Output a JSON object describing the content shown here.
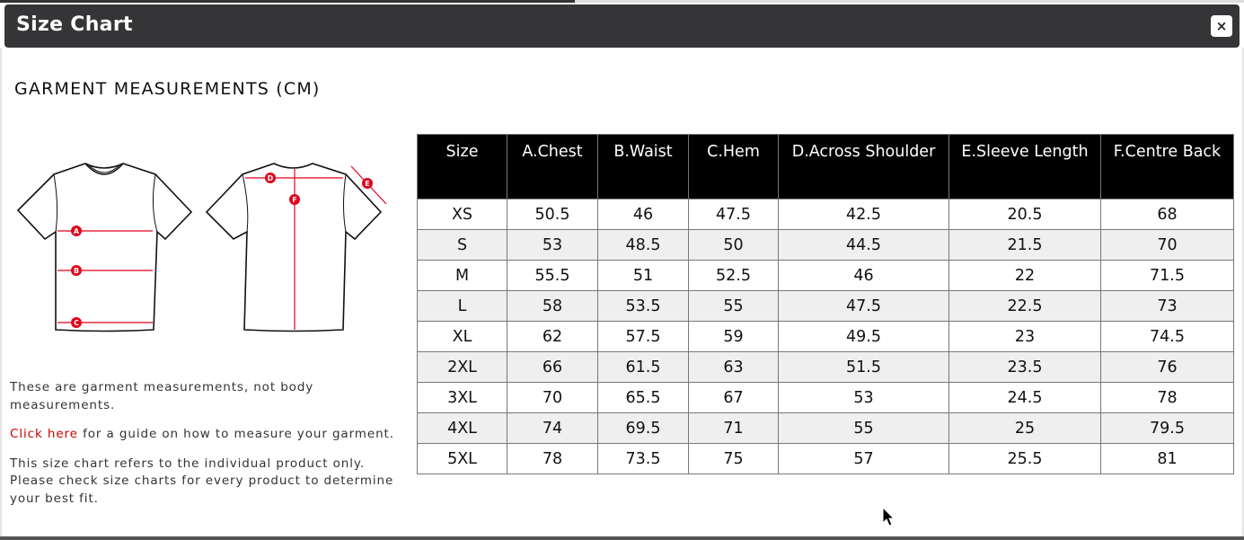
{
  "dialog": {
    "title": "Size Chart",
    "close_label": "×"
  },
  "heading": "GARMENT MEASUREMENTS (CM)",
  "diagram": {
    "front_labels": [
      "A",
      "B",
      "C"
    ],
    "back_labels": [
      "D",
      "F",
      "E"
    ],
    "accent_color": "#e2001a"
  },
  "notes": {
    "line1": "These are garment measurements, not body measurements.",
    "link_label": "Click here",
    "line2_rest": " for a guide on how to measure your garment.",
    "line3": "This size chart refers to the individual product only. Please check size charts for every product to determine your best fit."
  },
  "table": {
    "headers": [
      "Size",
      "A.Chest",
      "B.Waist",
      "C.Hem",
      "D.Across Shoulder",
      "E.Sleeve Length",
      "F.Centre Back"
    ],
    "rows": [
      [
        "XS",
        "50.5",
        "46",
        "47.5",
        "42.5",
        "20.5",
        "68"
      ],
      [
        "S",
        "53",
        "48.5",
        "50",
        "44.5",
        "21.5",
        "70"
      ],
      [
        "M",
        "55.5",
        "51",
        "52.5",
        "46",
        "22",
        "71.5"
      ],
      [
        "L",
        "58",
        "53.5",
        "55",
        "47.5",
        "22.5",
        "73"
      ],
      [
        "XL",
        "62",
        "57.5",
        "59",
        "49.5",
        "23",
        "74.5"
      ],
      [
        "2XL",
        "66",
        "61.5",
        "63",
        "51.5",
        "23.5",
        "76"
      ],
      [
        "3XL",
        "70",
        "65.5",
        "67",
        "53",
        "24.5",
        "78"
      ],
      [
        "4XL",
        "74",
        "69.5",
        "71",
        "55",
        "25",
        "79.5"
      ],
      [
        "5XL",
        "78",
        "73.5",
        "75",
        "57",
        "25.5",
        "81"
      ]
    ]
  }
}
